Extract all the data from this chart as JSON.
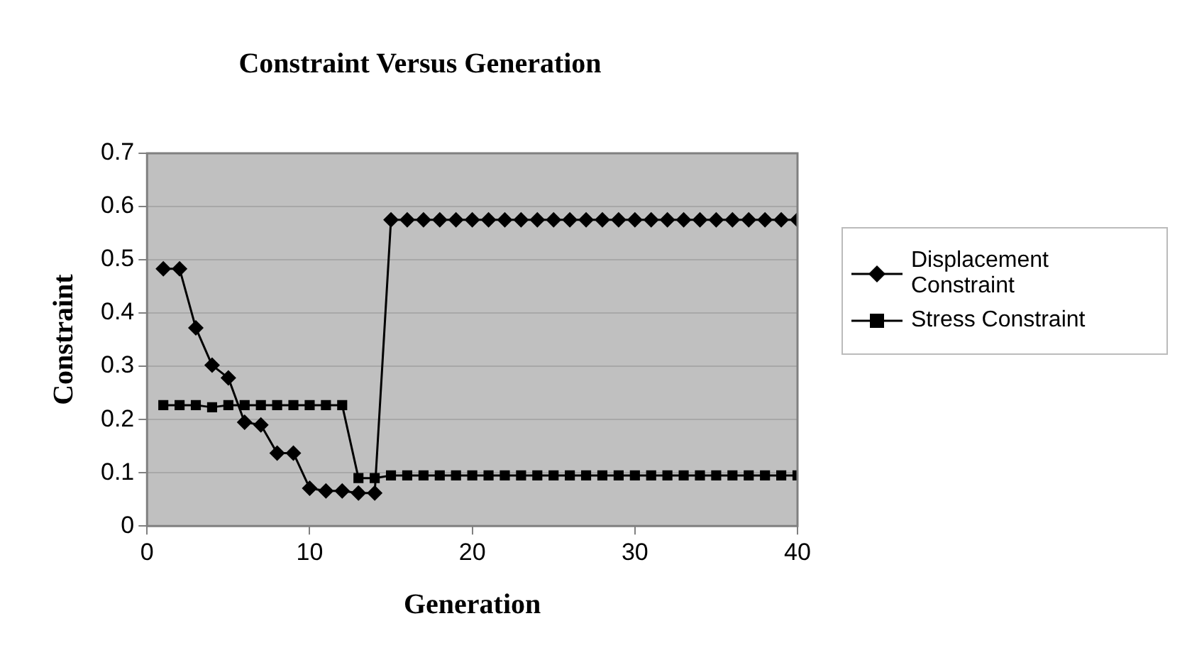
{
  "chart_data": {
    "type": "line",
    "title": "Constraint Versus Generation",
    "xlabel": "Generation",
    "ylabel": "Constraint",
    "x": [
      1,
      2,
      3,
      4,
      5,
      6,
      7,
      8,
      9,
      10,
      11,
      12,
      13,
      14,
      15,
      16,
      17,
      18,
      19,
      20,
      21,
      22,
      23,
      24,
      25,
      26,
      27,
      28,
      29,
      30,
      31,
      32,
      33,
      34,
      35,
      36,
      37,
      38,
      39,
      40
    ],
    "series": [
      {
        "name": "Displacement Constraint",
        "color": "#000000",
        "marker": "diamond",
        "values": [
          0.483,
          0.483,
          0.372,
          0.302,
          0.278,
          0.195,
          0.19,
          0.137,
          0.137,
          0.071,
          0.066,
          0.066,
          0.062,
          0.062,
          0.575,
          0.575,
          0.575,
          0.575,
          0.575,
          0.575,
          0.575,
          0.575,
          0.575,
          0.575,
          0.575,
          0.575,
          0.575,
          0.575,
          0.575,
          0.575,
          0.575,
          0.575,
          0.575,
          0.575,
          0.575,
          0.575,
          0.575,
          0.575,
          0.575,
          0.575
        ]
      },
      {
        "name": "Stress Constraint",
        "color": "#000000",
        "marker": "square",
        "values": [
          0.227,
          0.227,
          0.227,
          0.223,
          0.227,
          0.227,
          0.227,
          0.227,
          0.227,
          0.227,
          0.227,
          0.227,
          0.09,
          0.09,
          0.095,
          0.095,
          0.095,
          0.095,
          0.095,
          0.095,
          0.095,
          0.095,
          0.095,
          0.095,
          0.095,
          0.095,
          0.095,
          0.095,
          0.095,
          0.095,
          0.095,
          0.095,
          0.095,
          0.095,
          0.095,
          0.095,
          0.095,
          0.095,
          0.095,
          0.095
        ]
      }
    ],
    "xlim": [
      0,
      40
    ],
    "xticks": [
      0,
      10,
      20,
      30,
      40
    ],
    "ylim": [
      0,
      0.7
    ],
    "yticks": [
      0,
      0.1,
      0.2,
      0.3,
      0.4,
      0.5,
      0.6,
      0.7
    ],
    "grid": "y",
    "legend": "right",
    "line_style": "solid"
  }
}
